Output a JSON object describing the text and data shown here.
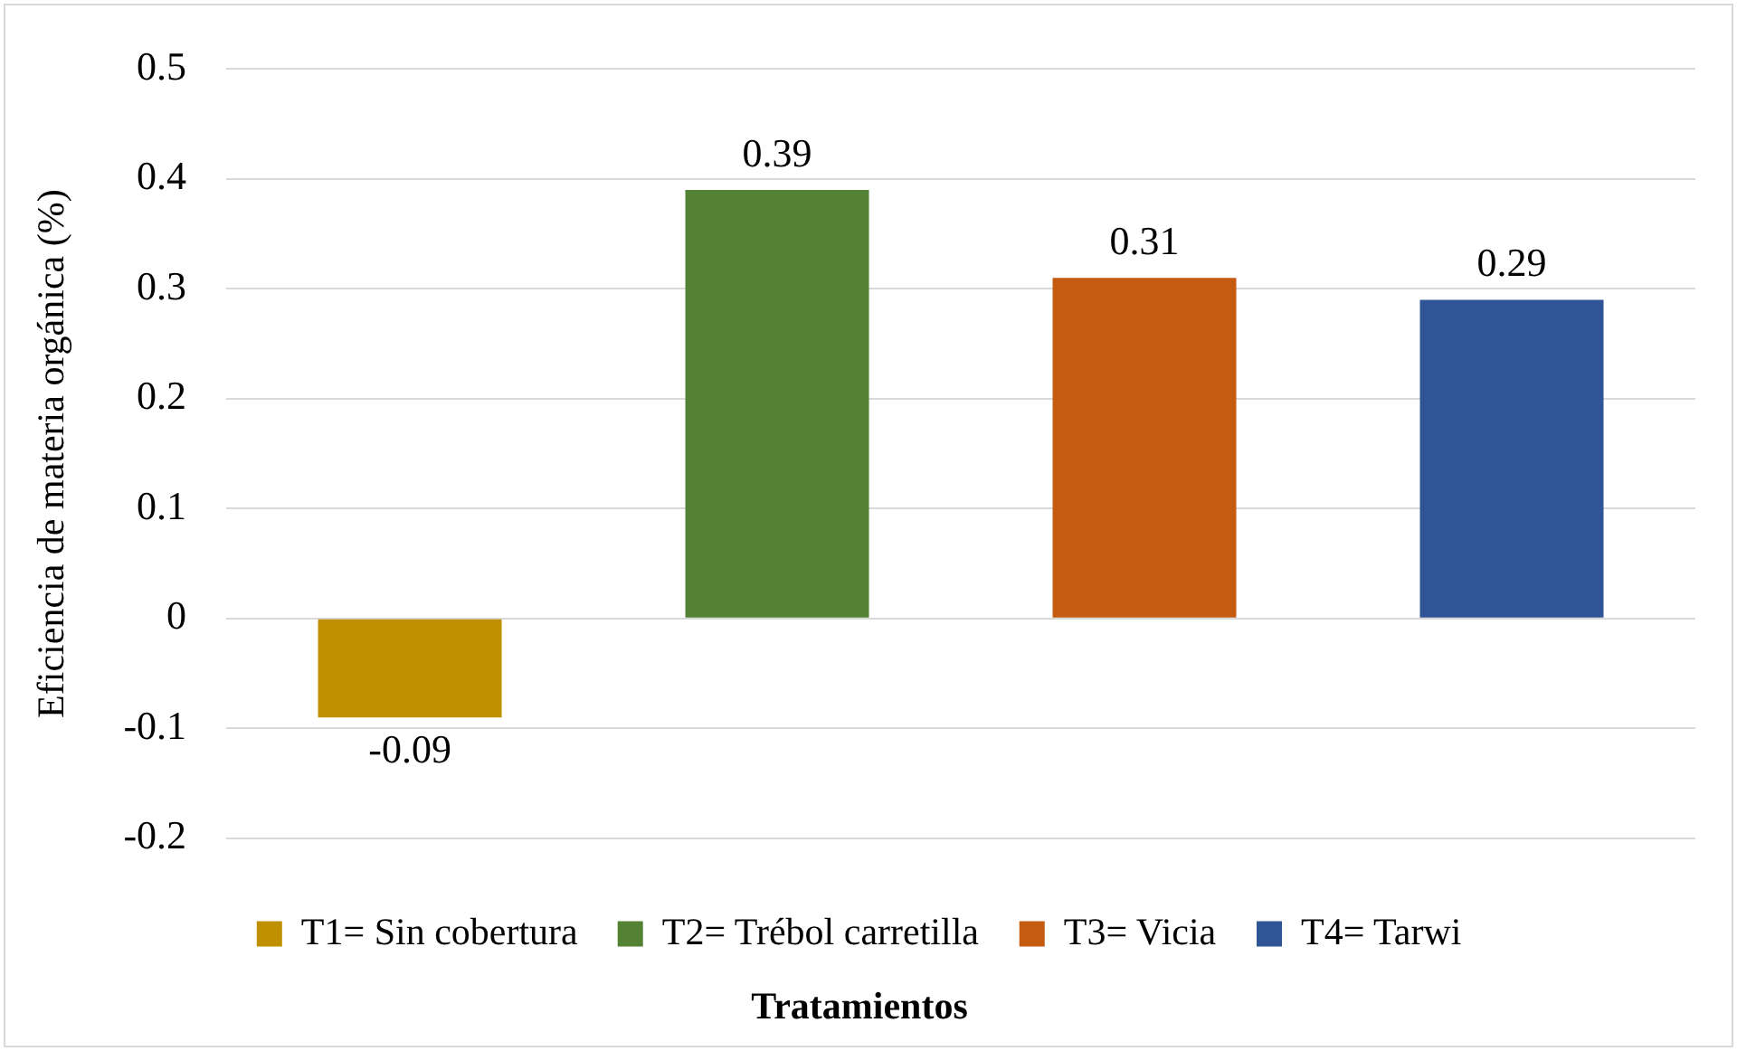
{
  "chart_data": {
    "type": "bar",
    "xlabel": "Tratamientos",
    "ylabel": "Eficiencia de materia orgánica (%)",
    "categories": [
      null,
      null,
      null,
      null
    ],
    "series": [
      {
        "name": "T1= Sin cobertura",
        "color": "#bf9000",
        "values": [
          -0.09,
          null,
          null,
          null
        ]
      },
      {
        "name": "T2= Trébol carretilla",
        "color": "#548235",
        "values": [
          null,
          0.39,
          null,
          null
        ]
      },
      {
        "name": "T3= Vicia",
        "color": "#c55a11",
        "values": [
          null,
          null,
          0.31,
          null
        ]
      },
      {
        "name": "T4= Tarwi",
        "color": "#2f5597",
        "values": [
          null,
          null,
          null,
          0.29
        ]
      }
    ],
    "ylim": [
      -0.2,
      0.5
    ],
    "yticks": [
      -0.2,
      -0.1,
      0,
      0.1,
      0.2,
      0.3,
      0.4,
      0.5
    ],
    "grid": "y",
    "legend": "bottom",
    "data_labels": true
  }
}
